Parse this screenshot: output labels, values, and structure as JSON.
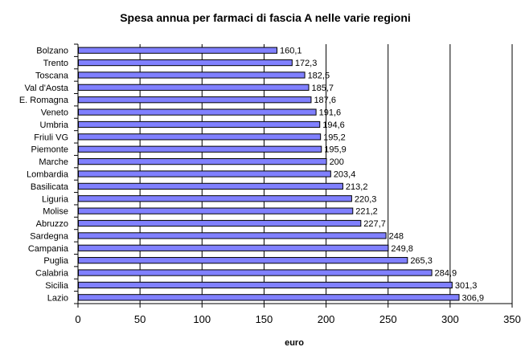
{
  "chart_data": {
    "type": "bar",
    "orientation": "horizontal",
    "title": "Spesa annua per farmaci di fascia A nelle varie regioni",
    "xlabel": "euro",
    "ylabel": "",
    "categories": [
      "Bolzano",
      "Trento",
      "Toscana",
      "Val d'Aosta",
      "E. Romagna",
      "Veneto",
      "Umbria",
      "Friuli VG",
      "Piemonte",
      "Marche",
      "Lombardia",
      "Basilicata",
      "Liguria",
      "Molise",
      "Abruzzo",
      "Sardegna",
      "Campania",
      "Puglia",
      "Calabria",
      "Sicilia",
      "Lazio"
    ],
    "values": [
      160.1,
      172.3,
      182.5,
      185.7,
      187.6,
      191.6,
      194.6,
      195.2,
      195.9,
      200,
      203.4,
      213.2,
      220.3,
      221.2,
      227.7,
      248,
      249.8,
      265.3,
      284.9,
      301.3,
      306.9
    ],
    "data_labels": [
      "160,1",
      "172,3",
      "182,5",
      "185,7",
      "187,6",
      "191,6",
      "194,6",
      "195,2",
      "195,9",
      "200",
      "203,4",
      "213,2",
      "220,3",
      "221,2",
      "227,7",
      "248",
      "249,8",
      "265,3",
      "284,9",
      "301,3",
      "306,9"
    ],
    "xlim": [
      0,
      350
    ],
    "xticks": [
      "0",
      "50",
      "100",
      "150",
      "200",
      "250",
      "300",
      "350"
    ],
    "grid": "vertical",
    "bar_color": "#8080ff",
    "legend": "none"
  }
}
